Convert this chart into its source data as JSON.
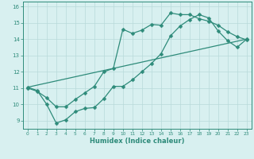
{
  "line1_x": [
    0,
    1,
    2,
    3,
    4,
    5,
    6,
    7,
    8,
    9,
    10,
    11,
    12,
    13,
    14,
    15,
    16,
    17,
    18,
    19,
    20,
    21,
    22,
    23
  ],
  "line1_y": [
    11.0,
    10.8,
    10.4,
    9.85,
    9.85,
    10.3,
    10.7,
    11.1,
    12.0,
    12.2,
    14.6,
    14.35,
    14.55,
    14.9,
    14.85,
    15.6,
    15.5,
    15.5,
    15.25,
    15.1,
    14.85,
    14.45,
    14.15,
    13.95
  ],
  "line2_x": [
    0,
    1,
    2,
    3,
    4,
    5,
    6,
    7,
    8,
    9,
    10,
    11,
    12,
    13,
    14,
    15,
    16,
    17,
    18,
    19,
    20,
    21,
    22,
    23
  ],
  "line2_y": [
    11.05,
    10.85,
    10.0,
    8.85,
    9.05,
    9.55,
    9.75,
    9.8,
    10.35,
    11.1,
    11.1,
    11.5,
    12.0,
    12.5,
    13.1,
    14.2,
    14.8,
    15.2,
    15.5,
    15.3,
    14.5,
    13.9,
    13.5,
    14.0
  ],
  "line3_x": [
    0,
    23
  ],
  "line3_y": [
    11.05,
    14.0
  ],
  "color": "#2e8b7a",
  "bg_color": "#d8f0f0",
  "grid_color": "#b8dada",
  "xlabel": "Humidex (Indice chaleur)",
  "xlim": [
    -0.5,
    23.5
  ],
  "ylim": [
    8.5,
    16.3
  ],
  "yticks": [
    9,
    10,
    11,
    12,
    13,
    14,
    15,
    16
  ],
  "xticks": [
    0,
    1,
    2,
    3,
    4,
    5,
    6,
    7,
    8,
    9,
    10,
    11,
    12,
    13,
    14,
    15,
    16,
    17,
    18,
    19,
    20,
    21,
    22,
    23
  ]
}
